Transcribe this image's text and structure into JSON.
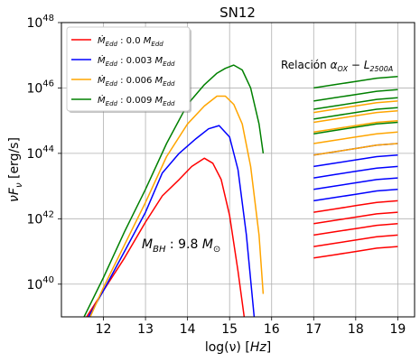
{
  "chart_data": {
    "type": "line",
    "title": "SN12",
    "xlabel": "log(ν) [Hz]",
    "ylabel": "νF_ν [erg/s]",
    "xlim": [
      11.0,
      19.4
    ],
    "ylim": [
      39.0,
      48.0
    ],
    "log_y": true,
    "grid": true,
    "legend_position": "top-left",
    "x_ticks": [
      {
        "value": 12,
        "label": "12"
      },
      {
        "value": 13,
        "label": "13"
      },
      {
        "value": 14,
        "label": "14"
      },
      {
        "value": 15,
        "label": "15"
      },
      {
        "value": 16,
        "label": "16"
      },
      {
        "value": 17,
        "label": "17"
      },
      {
        "value": 18,
        "label": "18"
      },
      {
        "value": 19,
        "label": "19"
      }
    ],
    "y_ticks": [
      {
        "value": 40,
        "base": "10",
        "exp": "40"
      },
      {
        "value": 42,
        "base": "10",
        "exp": "42"
      },
      {
        "value": 44,
        "base": "10",
        "exp": "44"
      },
      {
        "value": 46,
        "base": "10",
        "exp": "46"
      },
      {
        "value": 48,
        "base": "10",
        "exp": "48"
      }
    ],
    "annotations": {
      "relation": "Relación α_OX − L_2500A",
      "mass": "M_BH : 9.8 M_⊙"
    },
    "series": [
      {
        "name": "Ṁ_Edd : 0.0 M_Edd",
        "color": "#ff0000",
        "disk": {
          "x": [
            11.55,
            12.0,
            12.5,
            13.0,
            13.4,
            13.8,
            14.1,
            14.4,
            14.6,
            14.8,
            15.0,
            15.2,
            15.4
          ],
          "y": [
            38.9,
            39.8,
            40.8,
            41.9,
            42.7,
            43.2,
            43.6,
            43.85,
            43.7,
            43.2,
            42.1,
            40.4,
            38.5
          ]
        },
        "xray": [
          {
            "x": [
              17,
              17.5,
              18,
              18.5,
              19
            ],
            "y": [
              42.2,
              42.3,
              42.4,
              42.5,
              42.55
            ]
          },
          {
            "x": [
              17,
              17.5,
              18,
              18.5,
              19
            ],
            "y": [
              41.85,
              41.95,
              42.05,
              42.15,
              42.2
            ]
          },
          {
            "x": [
              17,
              17.5,
              18,
              18.5,
              19
            ],
            "y": [
              41.5,
              41.6,
              41.7,
              41.8,
              41.85
            ]
          },
          {
            "x": [
              17,
              17.5,
              18,
              18.5,
              19
            ],
            "y": [
              41.15,
              41.25,
              41.35,
              41.45,
              41.5
            ]
          },
          {
            "x": [
              17,
              17.5,
              18,
              18.5,
              19
            ],
            "y": [
              40.8,
              40.9,
              41.0,
              41.1,
              41.15
            ]
          }
        ]
      },
      {
        "name": "Ṁ_Edd : 0.003 M_Edd",
        "color": "#0000ff",
        "disk": {
          "x": [
            11.6,
            12.0,
            12.5,
            13.0,
            13.4,
            13.8,
            14.2,
            14.5,
            14.75,
            15.0,
            15.2,
            15.4,
            15.6
          ],
          "y": [
            38.9,
            39.8,
            41.0,
            42.2,
            43.4,
            44.0,
            44.45,
            44.75,
            44.85,
            44.5,
            43.5,
            41.5,
            38.8
          ]
        },
        "xray": [
          {
            "x": [
              17,
              17.5,
              18,
              18.5,
              19
            ],
            "y": [
              43.95,
              44.05,
              44.15,
              44.25,
              44.3
            ]
          },
          {
            "x": [
              17,
              17.5,
              18,
              18.5,
              19
            ],
            "y": [
              43.6,
              43.7,
              43.8,
              43.9,
              43.95
            ]
          },
          {
            "x": [
              17,
              17.5,
              18,
              18.5,
              19
            ],
            "y": [
              43.25,
              43.35,
              43.45,
              43.55,
              43.6
            ]
          },
          {
            "x": [
              17,
              17.5,
              18,
              18.5,
              19
            ],
            "y": [
              42.9,
              43.0,
              43.1,
              43.2,
              43.25
            ]
          },
          {
            "x": [
              17,
              17.5,
              18,
              18.5,
              19
            ],
            "y": [
              42.55,
              42.65,
              42.75,
              42.85,
              42.9
            ]
          }
        ]
      },
      {
        "name": "Ṁ_Edd : 0.006 M_Edd",
        "color": "#ffa500",
        "disk": {
          "x": [
            11.65,
            12.0,
            12.5,
            13.0,
            13.5,
            14.0,
            14.4,
            14.7,
            14.9,
            15.1,
            15.3,
            15.5,
            15.7,
            15.8
          ],
          "y": [
            38.9,
            39.9,
            41.2,
            42.5,
            43.9,
            44.9,
            45.45,
            45.75,
            45.75,
            45.5,
            44.9,
            43.6,
            41.5,
            39.7
          ]
        },
        "xray": [
          {
            "x": [
              17,
              17.5,
              18,
              18.5,
              19
            ],
            "y": [
              45.25,
              45.35,
              45.45,
              45.55,
              45.6
            ]
          },
          {
            "x": [
              17,
              17.5,
              18,
              18.5,
              19
            ],
            "y": [
              44.95,
              45.05,
              45.15,
              45.25,
              45.3
            ]
          },
          {
            "x": [
              17,
              17.5,
              18,
              18.5,
              19
            ],
            "y": [
              44.65,
              44.75,
              44.85,
              44.95,
              45.0
            ]
          },
          {
            "x": [
              17,
              17.5,
              18,
              18.5,
              19
            ],
            "y": [
              44.3,
              44.4,
              44.5,
              44.6,
              44.65
            ]
          },
          {
            "x": [
              17,
              17.5,
              18,
              18.5,
              19
            ],
            "y": [
              43.95,
              44.05,
              44.15,
              44.25,
              44.3
            ]
          }
        ]
      },
      {
        "name": "Ṁ_Edd : 0.009 M_Edd",
        "color": "#008000",
        "disk": {
          "x": [
            11.5,
            12.0,
            12.5,
            13.0,
            13.5,
            14.0,
            14.4,
            14.7,
            14.9,
            15.1,
            15.3,
            15.5,
            15.7,
            15.8
          ],
          "y": [
            38.9,
            40.2,
            41.6,
            42.9,
            44.3,
            45.5,
            46.1,
            46.45,
            46.6,
            46.7,
            46.55,
            46.0,
            44.9,
            44.0
          ]
        },
        "xray": [
          {
            "x": [
              17,
              17.5,
              18,
              18.5,
              19
            ],
            "y": [
              46.0,
              46.1,
              46.2,
              46.3,
              46.35
            ]
          },
          {
            "x": [
              17,
              17.5,
              18,
              18.5,
              19
            ],
            "y": [
              45.6,
              45.7,
              45.8,
              45.9,
              45.95
            ]
          },
          {
            "x": [
              17,
              17.5,
              18,
              18.5,
              19
            ],
            "y": [
              45.35,
              45.45,
              45.55,
              45.65,
              45.7
            ]
          },
          {
            "x": [
              17,
              17.5,
              18,
              18.5,
              19
            ],
            "y": [
              45.05,
              45.15,
              45.25,
              45.35,
              45.4
            ]
          },
          {
            "x": [
              17,
              17.5,
              18,
              18.5,
              19
            ],
            "y": [
              44.6,
              44.7,
              44.8,
              44.9,
              44.95
            ]
          }
        ]
      }
    ]
  }
}
